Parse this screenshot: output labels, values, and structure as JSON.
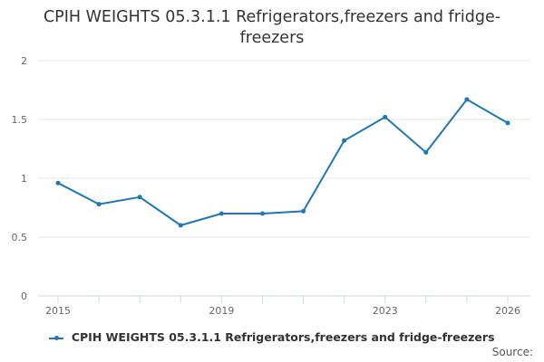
{
  "chart_data": {
    "type": "line",
    "title": "CPIH WEIGHTS 05.3.1.1 Refrigerators,freezers and fridge-freezers",
    "xlabel": "",
    "ylabel": "",
    "x": [
      2015,
      2016,
      2017,
      2018,
      2019,
      2020,
      2021,
      2022,
      2023,
      2024,
      2025,
      2026
    ],
    "series": [
      {
        "name": "CPIH WEIGHTS 05.3.1.1 Refrigerators,freezers and fridge-freezers",
        "values": [
          0.96,
          0.78,
          0.84,
          0.6,
          0.7,
          0.7,
          0.72,
          1.32,
          1.52,
          1.22,
          1.67,
          1.47
        ]
      }
    ],
    "x_ticks": [
      "2015",
      "2019",
      "2023",
      "2026"
    ],
    "y_ticks": [
      "0",
      "0.5",
      "1",
      "1.5",
      "2"
    ],
    "ylim": [
      0,
      2
    ],
    "xlim": [
      2015,
      2026
    ],
    "grid": true,
    "legend_position": "bottom",
    "line_color": "#1f77b4",
    "source_label": "Source:"
  }
}
